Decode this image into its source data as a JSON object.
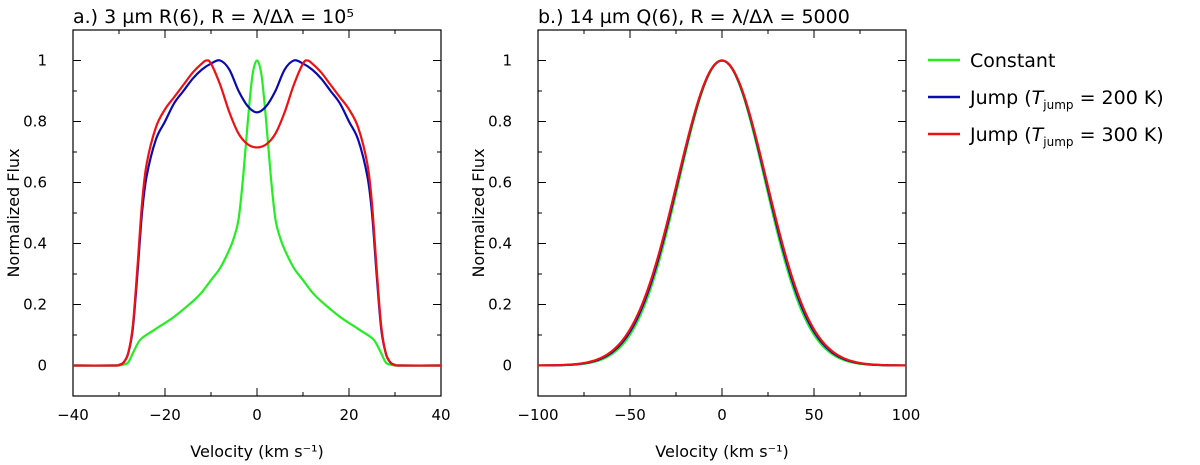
{
  "chart_data": [
    {
      "type": "line",
      "title": "a.) 3 µm R(6), R = λ/Δλ = 10⁵",
      "xlabel": "Velocity (km s⁻¹)",
      "ylabel": "Normalized Flux",
      "xlim": [
        -40,
        40
      ],
      "ylim": [
        -0.1,
        1.1
      ],
      "xticks": [
        -40,
        -20,
        0,
        20,
        40
      ],
      "xtick_labels": [
        "−40",
        "−20",
        "0",
        "20",
        "40"
      ],
      "yticks": [
        0,
        0.2,
        0.4,
        0.6,
        0.8,
        1
      ],
      "ytick_labels": [
        "0",
        "0.2",
        "0.4",
        "0.6",
        "0.8",
        "1"
      ],
      "series": [
        {
          "name": "Constant",
          "color": "#22ee22",
          "x": [
            -40,
            -31,
            -29,
            -28,
            -27,
            -26,
            -25,
            -22,
            -18,
            -14,
            -12,
            -10,
            -8,
            -6,
            -5,
            -4,
            -3,
            -2,
            -1,
            0,
            1,
            2,
            3,
            4,
            5,
            6,
            8,
            10,
            12,
            14,
            18,
            22,
            25,
            26,
            27,
            28,
            29,
            31,
            40
          ],
          "y": [
            0,
            0,
            0.003,
            0.01,
            0.04,
            0.07,
            0.09,
            0.12,
            0.16,
            0.21,
            0.24,
            0.28,
            0.32,
            0.38,
            0.42,
            0.48,
            0.62,
            0.8,
            0.95,
            1.0,
            0.95,
            0.8,
            0.62,
            0.48,
            0.42,
            0.38,
            0.32,
            0.28,
            0.24,
            0.21,
            0.16,
            0.12,
            0.09,
            0.07,
            0.04,
            0.01,
            0.003,
            0,
            0
          ]
        },
        {
          "name": "Jump (T_jump = 200 K)",
          "color": "#0a0ab0",
          "x": [
            -40,
            -31,
            -30,
            -29,
            -28,
            -27,
            -26,
            -25,
            -24,
            -22,
            -20,
            -18,
            -16,
            -14,
            -12,
            -10,
            -8,
            -6,
            -4,
            -2,
            0,
            2,
            4,
            6,
            8,
            10,
            12,
            14,
            16,
            18,
            20,
            22,
            24,
            25,
            26,
            27,
            28,
            29,
            30,
            31,
            40
          ],
          "y": [
            0,
            0,
            0.002,
            0.01,
            0.04,
            0.12,
            0.3,
            0.5,
            0.62,
            0.74,
            0.8,
            0.86,
            0.9,
            0.94,
            0.97,
            0.99,
            1.0,
            0.97,
            0.9,
            0.85,
            0.83,
            0.85,
            0.9,
            0.97,
            1.0,
            0.99,
            0.97,
            0.94,
            0.9,
            0.86,
            0.8,
            0.74,
            0.62,
            0.5,
            0.3,
            0.12,
            0.04,
            0.01,
            0.002,
            0,
            0
          ]
        },
        {
          "name": "Jump (T_jump = 300 K)",
          "color": "#ee1111",
          "x": [
            -40,
            -31,
            -30,
            -29,
            -28,
            -27,
            -26,
            -25,
            -24,
            -22,
            -20,
            -18,
            -16,
            -14,
            -12,
            -11,
            -10,
            -8,
            -6,
            -4,
            -2,
            0,
            2,
            4,
            6,
            8,
            10,
            11,
            12,
            14,
            16,
            18,
            20,
            22,
            24,
            25,
            26,
            27,
            28,
            29,
            30,
            31,
            40
          ],
          "y": [
            0,
            0,
            0.002,
            0.01,
            0.04,
            0.13,
            0.32,
            0.53,
            0.66,
            0.78,
            0.84,
            0.88,
            0.92,
            0.96,
            0.99,
            1.0,
            0.99,
            0.92,
            0.83,
            0.76,
            0.725,
            0.715,
            0.725,
            0.76,
            0.83,
            0.92,
            0.99,
            1.0,
            0.99,
            0.96,
            0.92,
            0.88,
            0.84,
            0.78,
            0.66,
            0.53,
            0.32,
            0.13,
            0.04,
            0.01,
            0.002,
            0,
            0
          ]
        }
      ]
    },
    {
      "type": "line",
      "title": "b.) 14 µm Q(6), R = λ/Δλ = 5000",
      "xlabel": "Velocity (km s⁻¹)",
      "ylabel": "Normalized Flux",
      "xlim": [
        -100,
        100
      ],
      "ylim": [
        -0.1,
        1.1
      ],
      "xticks": [
        -100,
        -50,
        0,
        50,
        100
      ],
      "xtick_labels": [
        "−100",
        "−50",
        "0",
        "50",
        "100"
      ],
      "yticks": [
        0,
        0.2,
        0.4,
        0.6,
        0.8,
        1
      ],
      "ytick_labels": [
        "0",
        "0.2",
        "0.4",
        "0.6",
        "0.8",
        "1"
      ],
      "series": [
        {
          "name": "Constant",
          "color": "#22ee22",
          "profile": "gaussian",
          "fwhm": 55
        },
        {
          "name": "Jump (T_jump = 200 K)",
          "color": "#0a0ab0",
          "profile": "gaussian",
          "fwhm": 56.2
        },
        {
          "name": "Jump (T_jump = 300 K)",
          "color": "#ee1111",
          "profile": "gaussian",
          "fwhm": 57
        }
      ]
    }
  ],
  "legend": {
    "position": "right",
    "entries": [
      {
        "label": "Constant",
        "color": "#22ee22"
      },
      {
        "label_prefix": "Jump (",
        "label_var": "T",
        "label_sub": "jump",
        "label_suffix": " = 200 K)",
        "color": "#0a0ab0"
      },
      {
        "label_prefix": "Jump (",
        "label_var": "T",
        "label_sub": "jump",
        "label_suffix": " = 300 K)",
        "color": "#ee1111"
      }
    ]
  }
}
